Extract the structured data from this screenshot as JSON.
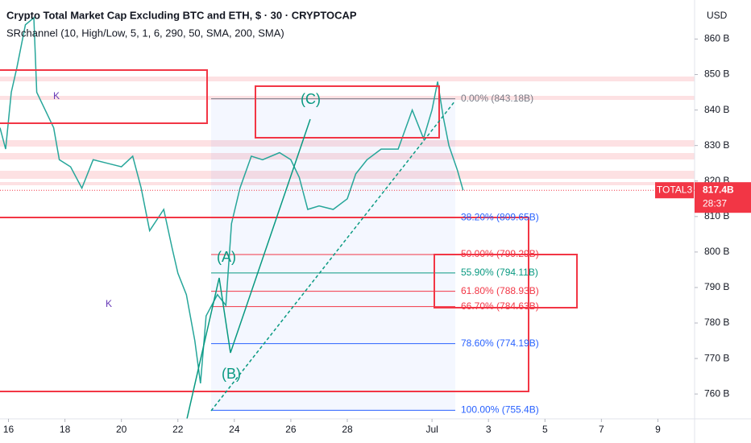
{
  "chart_data": {
    "type": "line",
    "title": "Crypto Total Market Cap Excluding BTC and ETH, $ · 30 · CRYPTOCAP",
    "subtitle": "SRchannel (10, High/Low, 5, 1, 6, 290, 50, SMA, 200, SMA)",
    "currency": "USD",
    "color": "#26a69a",
    "xlim": [
      15.7,
      40.3
    ],
    "ylim": [
      753,
      871
    ],
    "xticks": [
      16,
      18,
      20,
      22,
      24,
      26,
      28,
      {
        "value": 31,
        "label": "Jul"
      },
      {
        "value": 33,
        "label": "3"
      },
      {
        "value": 35,
        "label": "5"
      },
      {
        "value": 37,
        "label": "7"
      },
      {
        "value": 39,
        "label": "9"
      }
    ],
    "yticks": [
      {
        "value": 760,
        "label": "760 B"
      },
      {
        "value": 770,
        "label": "770 B"
      },
      {
        "value": 780,
        "label": "780 B"
      },
      {
        "value": 790,
        "label": "790 B"
      },
      {
        "value": 800,
        "label": "800 B"
      },
      {
        "value": 810,
        "label": "810 B"
      },
      {
        "value": 820,
        "label": "820 B"
      },
      {
        "value": 830,
        "label": "830 B"
      },
      {
        "value": 840,
        "label": "840 B"
      },
      {
        "value": 850,
        "label": "850 B"
      },
      {
        "value": 860,
        "label": "860 B"
      }
    ],
    "x": [
      15.7,
      15.9,
      16.1,
      16.3,
      16.6,
      16.9,
      17.0,
      17.3,
      17.6,
      17.8,
      18.2,
      18.6,
      19.0,
      19.5,
      20.0,
      20.4,
      20.7,
      21.0,
      21.5,
      21.8,
      22.0,
      22.3,
      22.6,
      22.8,
      23.0,
      23.4,
      23.7,
      23.9,
      24.2,
      24.6,
      25.0,
      25.6,
      26.0,
      26.3,
      26.6,
      27.0,
      27.5,
      28.0,
      28.3,
      28.7,
      29.2,
      29.8,
      30.3,
      30.7,
      31.0,
      31.2,
      31.4,
      31.6,
      31.9,
      32.1
    ],
    "values": [
      835,
      829,
      845,
      852,
      864,
      866,
      845,
      840,
      835,
      826,
      824,
      818,
      826,
      825,
      824,
      827,
      818,
      806,
      812,
      801,
      794,
      788,
      775,
      763,
      782,
      788,
      785,
      808,
      818,
      827,
      826,
      828,
      826,
      821,
      812,
      813,
      812,
      815,
      822,
      826,
      829,
      829,
      840,
      832,
      840,
      848,
      838,
      830,
      823,
      817.4
    ],
    "current_price": {
      "value": 817.4,
      "label": "817.4B"
    },
    "ticker": "TOTAL3",
    "countdown": "28:37",
    "fib_levels": [
      {
        "label": "0.00% (843.18B)",
        "value": 843.18,
        "color": "#787b86"
      },
      {
        "label": "38.20% (809.65B)",
        "value": 809.65,
        "color": "#2962ff"
      },
      {
        "label": "50.00% (799.29B)",
        "value": 799.29,
        "color": "#f23645"
      },
      {
        "label": "55.90% (794.11B)",
        "value": 794.11,
        "color": "#089981"
      },
      {
        "label": "61.80% (788.93B)",
        "value": 788.93,
        "color": "#f23645"
      },
      {
        "label": "66.70% (784.63B)",
        "value": 784.63,
        "color": "#f23645"
      },
      {
        "label": "78.60% (774.19B)",
        "value": 774.19,
        "color": "#2962ff"
      },
      {
        "label": "100.00% (755.4B)",
        "value": 755.4,
        "color": "#2962ff"
      }
    ],
    "annotations": [
      "(A)",
      "(B)",
      "(C)",
      "K",
      "K"
    ]
  }
}
